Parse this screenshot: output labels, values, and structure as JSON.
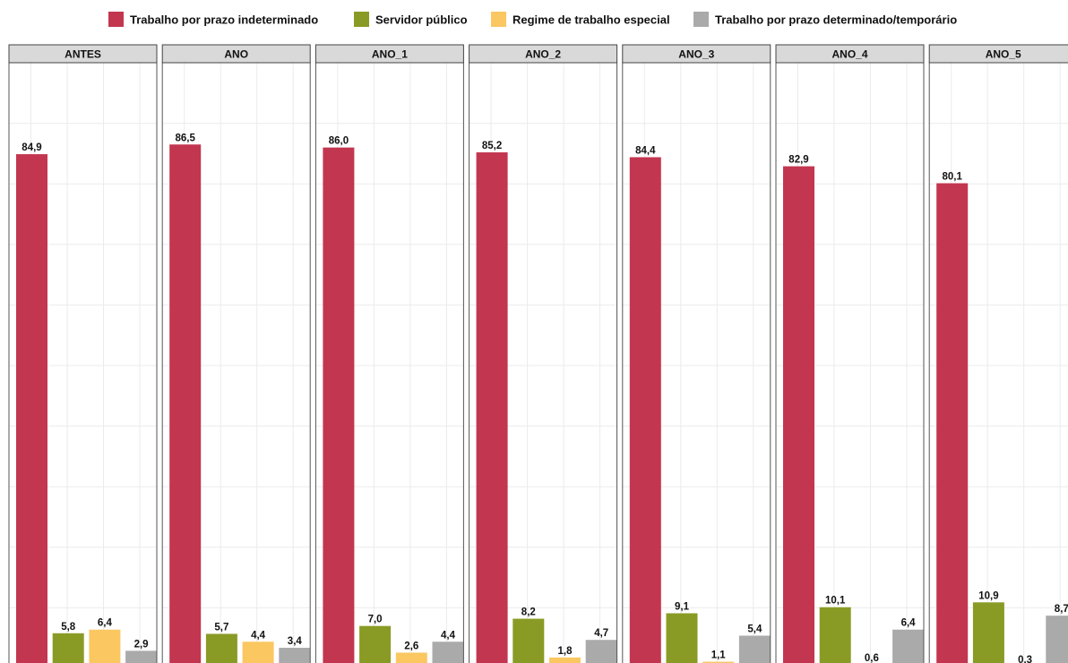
{
  "chart_data": {
    "type": "bar",
    "facets": [
      "ANTES",
      "ANO",
      "ANO_1",
      "ANO_2",
      "ANO_3",
      "ANO_4",
      "ANO_5"
    ],
    "series": [
      {
        "name": "Trabalho por prazo indeterminado",
        "color": "#c3364f",
        "values": [
          84.9,
          86.5,
          86.0,
          85.2,
          84.4,
          82.9,
          80.1
        ],
        "labels": [
          "84,9",
          "86,5",
          "86,0",
          "85,2",
          "84,4",
          "82,9",
          "80,1"
        ]
      },
      {
        "name": "Servidor público",
        "color": "#8a9b25",
        "values": [
          5.8,
          5.7,
          7.0,
          8.2,
          9.1,
          10.1,
          10.9
        ],
        "labels": [
          "5,8",
          "5,7",
          "7,0",
          "8,2",
          "9,1",
          "10,1",
          "10,9"
        ]
      },
      {
        "name": "Regime de trabalho especial",
        "color": "#fbc761",
        "values": [
          6.4,
          4.4,
          2.6,
          1.8,
          1.1,
          0.6,
          0.3
        ],
        "labels": [
          "6,4",
          "4,4",
          "2,6",
          "1,8",
          "1,1",
          "0,6",
          "0,3"
        ]
      },
      {
        "name": "Trabalho por prazo determinado/temporário",
        "color": "#aaaaaa",
        "values": [
          2.9,
          3.4,
          4.4,
          4.7,
          5.4,
          6.4,
          8.7
        ],
        "labels": [
          "2,9",
          "3,4",
          "4,4",
          "4,7",
          "5,4",
          "6,4",
          "8,7"
        ]
      }
    ],
    "ylim": [
      0,
      100
    ],
    "grid": true,
    "legend_position": "top"
  }
}
